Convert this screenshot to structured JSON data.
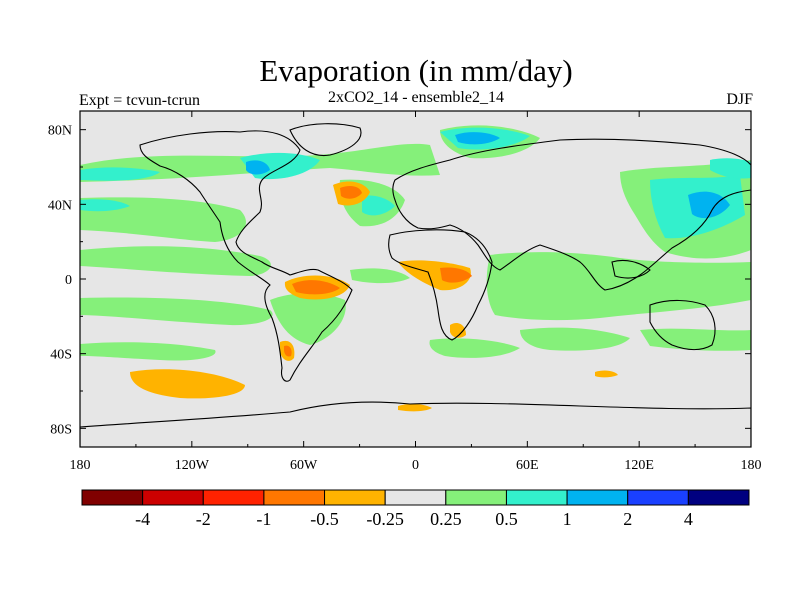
{
  "header": {
    "title": "Evaporation (in mm/day)",
    "left_label": "Expt = tcvun-tcrun",
    "center_label": "2xCO2_14 - ensemble2_14",
    "right_label": "DJF"
  },
  "axes": {
    "lon_ticks": [
      {
        "lon": -180,
        "label": "180"
      },
      {
        "lon": -120,
        "label": "120W"
      },
      {
        "lon": -60,
        "label": "60W"
      },
      {
        "lon": 0,
        "label": "0"
      },
      {
        "lon": 60,
        "label": "60E"
      },
      {
        "lon": 120,
        "label": "120E"
      },
      {
        "lon": 180,
        "label": "180"
      }
    ],
    "lat_ticks": [
      {
        "lat": 80,
        "label": "80N"
      },
      {
        "lat": 40,
        "label": "40N"
      },
      {
        "lat": 0,
        "label": "0"
      },
      {
        "lat": -40,
        "label": "40S"
      },
      {
        "lat": -80,
        "label": "80S"
      }
    ],
    "lon_range": [
      -180,
      180
    ],
    "lat_range": [
      -90,
      90
    ]
  },
  "colorbar": {
    "colors": [
      "#800000",
      "#cc0000",
      "#ff2200",
      "#ff7700",
      "#ffb300",
      "#e6e6e6",
      "#85f07a",
      "#33f0cc",
      "#00b3f0",
      "#1a40ff",
      "#000080"
    ],
    "labels": [
      "-4",
      "-2",
      "-1",
      "-0.5",
      "-0.25",
      "0.25",
      "0.5",
      "1",
      "2",
      "4"
    ]
  },
  "palette": {
    "neutral": "#e6e6e6",
    "light_green": "#85f07a",
    "aqua": "#33f0cc",
    "sky_blue": "#00b3f0",
    "orange": "#ffb300",
    "dark_orange": "#ff7700"
  }
}
